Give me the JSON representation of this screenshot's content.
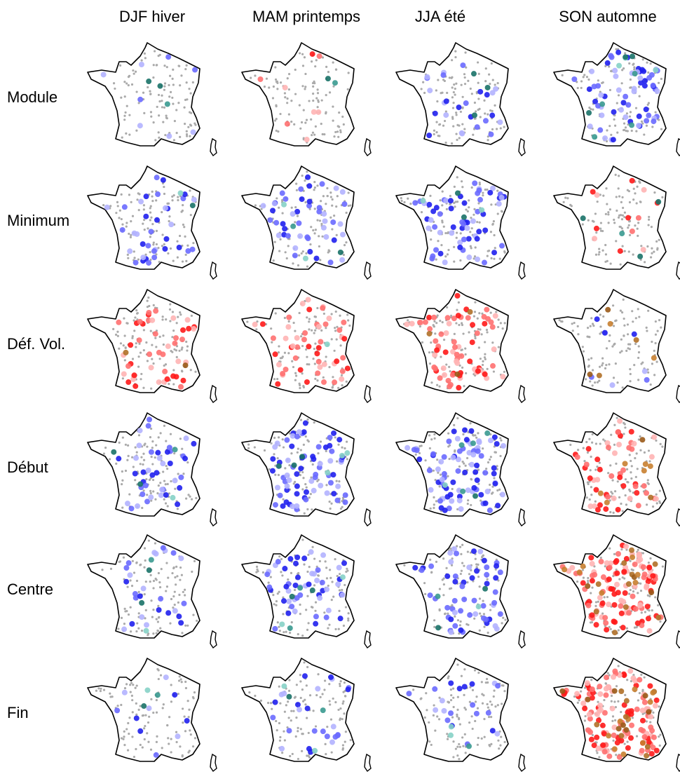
{
  "columns": [
    "DJF hiver",
    "MAM printemps",
    "JJA été",
    "SON automne"
  ],
  "rows": [
    "Module",
    "Minimum",
    "Déf. Vol.",
    "Début",
    "Centre",
    "Fin"
  ]
}
